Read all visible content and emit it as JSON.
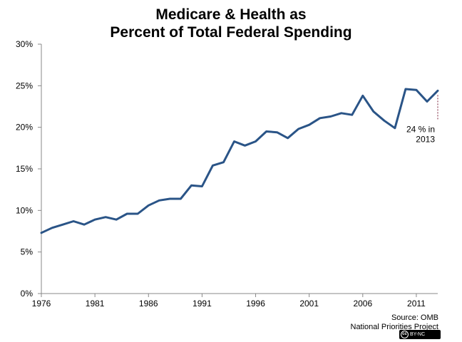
{
  "chart_data": {
    "type": "line",
    "title": [
      "Medicare & Health as",
      "Percent of Total Federal Spending"
    ],
    "xlabel": "",
    "ylabel": "",
    "xlim": [
      1976,
      2013
    ],
    "ylim": [
      0,
      30
    ],
    "x_ticks": [
      1976,
      1981,
      1986,
      1991,
      1996,
      2001,
      2006,
      2011
    ],
    "y_ticks": [
      "0%",
      "5%",
      "10%",
      "15%",
      "20%",
      "25%",
      "30%"
    ],
    "y_tick_values": [
      0,
      5,
      10,
      15,
      20,
      25,
      30
    ],
    "grid": false,
    "legend": "none",
    "series": [
      {
        "color": "#2a5487",
        "x": [
          1976,
          1977,
          1978,
          1979,
          1980,
          1981,
          1982,
          1983,
          1984,
          1985,
          1986,
          1987,
          1988,
          1989,
          1990,
          1991,
          1992,
          1993,
          1994,
          1995,
          1996,
          1997,
          1998,
          1999,
          2000,
          2001,
          2002,
          2003,
          2004,
          2005,
          2006,
          2007,
          2008,
          2009,
          2010,
          2011,
          2012,
          2013
        ],
        "values": [
          7.3,
          7.9,
          8.3,
          8.7,
          8.3,
          8.9,
          9.2,
          8.9,
          9.6,
          9.6,
          10.6,
          11.2,
          11.4,
          11.4,
          13.0,
          12.9,
          15.4,
          15.8,
          18.3,
          17.8,
          18.3,
          19.5,
          19.4,
          18.7,
          19.8,
          20.3,
          21.1,
          21.3,
          21.7,
          21.5,
          23.8,
          21.9,
          20.8,
          19.9,
          24.6,
          24.5,
          23.1,
          24.4
        ]
      }
    ],
    "annotations": [
      {
        "text_lines": [
          "24 % in",
          "2013"
        ],
        "x": 2013,
        "y": 24.4
      }
    ]
  },
  "source": {
    "line1": "Source: OMB",
    "line2": "National Priorities Project",
    "license": "BY-NC"
  }
}
